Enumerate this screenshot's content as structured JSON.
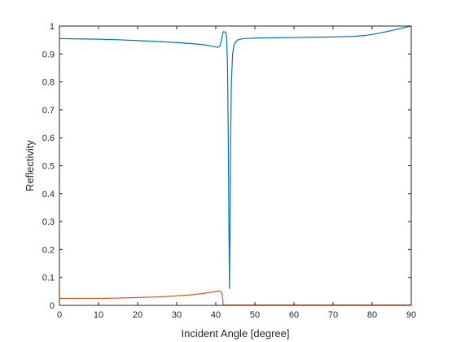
{
  "chart_data": {
    "type": "line",
    "title": "",
    "xlabel": "Incident Angle [degree]",
    "ylabel": "Reflectivity",
    "xlim": [
      0,
      90
    ],
    "ylim": [
      0,
      1
    ],
    "xticks": [
      0,
      10,
      20,
      30,
      40,
      50,
      60,
      70,
      80,
      90
    ],
    "yticks": [
      0,
      0.1,
      0.2,
      0.3,
      0.4,
      0.5,
      0.6,
      0.7,
      0.8,
      0.9,
      1
    ],
    "xtick_labels": [
      "0",
      "10",
      "20",
      "30",
      "40",
      "50",
      "60",
      "70",
      "80",
      "90"
    ],
    "ytick_labels": [
      "0",
      "0.1",
      "0.2",
      "0.3",
      "0.4",
      "0.5",
      "0.6",
      "0.7",
      "0.8",
      "0.9",
      "1"
    ],
    "grid": false,
    "series": [
      {
        "color": "#0072BD",
        "points": [
          [
            0,
            0.955
          ],
          [
            5,
            0.954
          ],
          [
            10,
            0.953
          ],
          [
            15,
            0.951
          ],
          [
            20,
            0.948
          ],
          [
            25,
            0.945
          ],
          [
            30,
            0.941
          ],
          [
            34,
            0.937
          ],
          [
            37,
            0.933
          ],
          [
            39,
            0.928
          ],
          [
            40,
            0.925
          ],
          [
            40.6,
            0.924
          ],
          [
            41,
            0.928
          ],
          [
            41.3,
            0.94
          ],
          [
            41.6,
            0.96
          ],
          [
            41.8,
            0.975
          ],
          [
            42.0,
            0.98
          ],
          [
            42.3,
            0.979
          ],
          [
            42.6,
            0.975
          ],
          [
            42.8,
            0.95
          ],
          [
            43.0,
            0.86
          ],
          [
            43.2,
            0.6
          ],
          [
            43.35,
            0.3
          ],
          [
            43.5,
            0.06
          ],
          [
            43.65,
            0.3
          ],
          [
            43.8,
            0.6
          ],
          [
            44.0,
            0.8
          ],
          [
            44.3,
            0.9
          ],
          [
            44.7,
            0.935
          ],
          [
            45.5,
            0.95
          ],
          [
            47,
            0.955
          ],
          [
            50,
            0.957
          ],
          [
            55,
            0.958
          ],
          [
            60,
            0.959
          ],
          [
            65,
            0.96
          ],
          [
            70,
            0.961
          ],
          [
            75,
            0.963
          ],
          [
            78,
            0.966
          ],
          [
            80,
            0.97
          ],
          [
            82,
            0.975
          ],
          [
            84,
            0.981
          ],
          [
            86,
            0.987
          ],
          [
            88,
            0.994
          ],
          [
            90,
            1.0
          ]
        ]
      },
      {
        "color": "#D95319",
        "points": [
          [
            0,
            0.025
          ],
          [
            5,
            0.025
          ],
          [
            10,
            0.025
          ],
          [
            15,
            0.026
          ],
          [
            20,
            0.028
          ],
          [
            25,
            0.03
          ],
          [
            30,
            0.034
          ],
          [
            34,
            0.038
          ],
          [
            37,
            0.043
          ],
          [
            39,
            0.047
          ],
          [
            40,
            0.05
          ],
          [
            40.8,
            0.052
          ],
          [
            41.3,
            0.05
          ],
          [
            41.6,
            0.04
          ],
          [
            41.8,
            0.02
          ],
          [
            41.9,
            0.004
          ],
          [
            42.1,
            0.001
          ],
          [
            45,
            0.001
          ],
          [
            60,
            0.001
          ],
          [
            75,
            0.001
          ],
          [
            90,
            0.001
          ]
        ]
      }
    ]
  }
}
